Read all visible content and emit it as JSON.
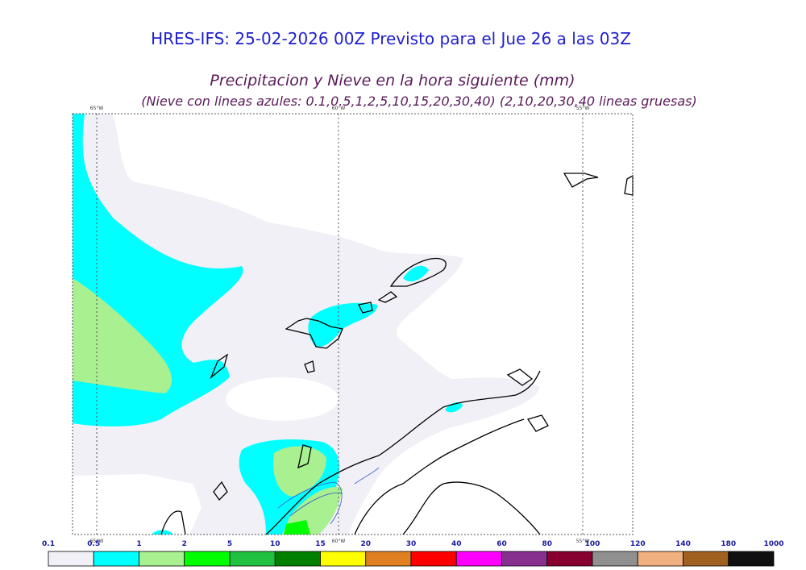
{
  "header": {
    "title": "HRES-IFS: 25-02-2026 00Z Previsto para el Jue 26 a las 03Z",
    "subtitle": "Precipitacion y Nieve en la hora siguiente (mm)",
    "note": "(Nieve con lineas azules: 0.1,0.5,1,2,5,10,15,20,30,40)  (2,10,20,30,40 lineas gruesas)"
  },
  "map": {
    "meridians": [
      "65°W",
      "60°W",
      "55°W"
    ]
  },
  "colorbar": {
    "labels": [
      "0.1",
      "0.5",
      "1",
      "2",
      "5",
      "10",
      "15",
      "20",
      "30",
      "40",
      "60",
      "80",
      "100",
      "120",
      "140",
      "180",
      "1000"
    ],
    "colors": [
      "#f0f0f6",
      "#00ffff",
      "#a8f090",
      "#00ff00",
      "#20c040",
      "#008000",
      "#ffff00",
      "#e08020",
      "#ff0000",
      "#ff00ff",
      "#883090",
      "#880030",
      "#909090",
      "#f0b080",
      "#a06020",
      "#101010"
    ]
  }
}
